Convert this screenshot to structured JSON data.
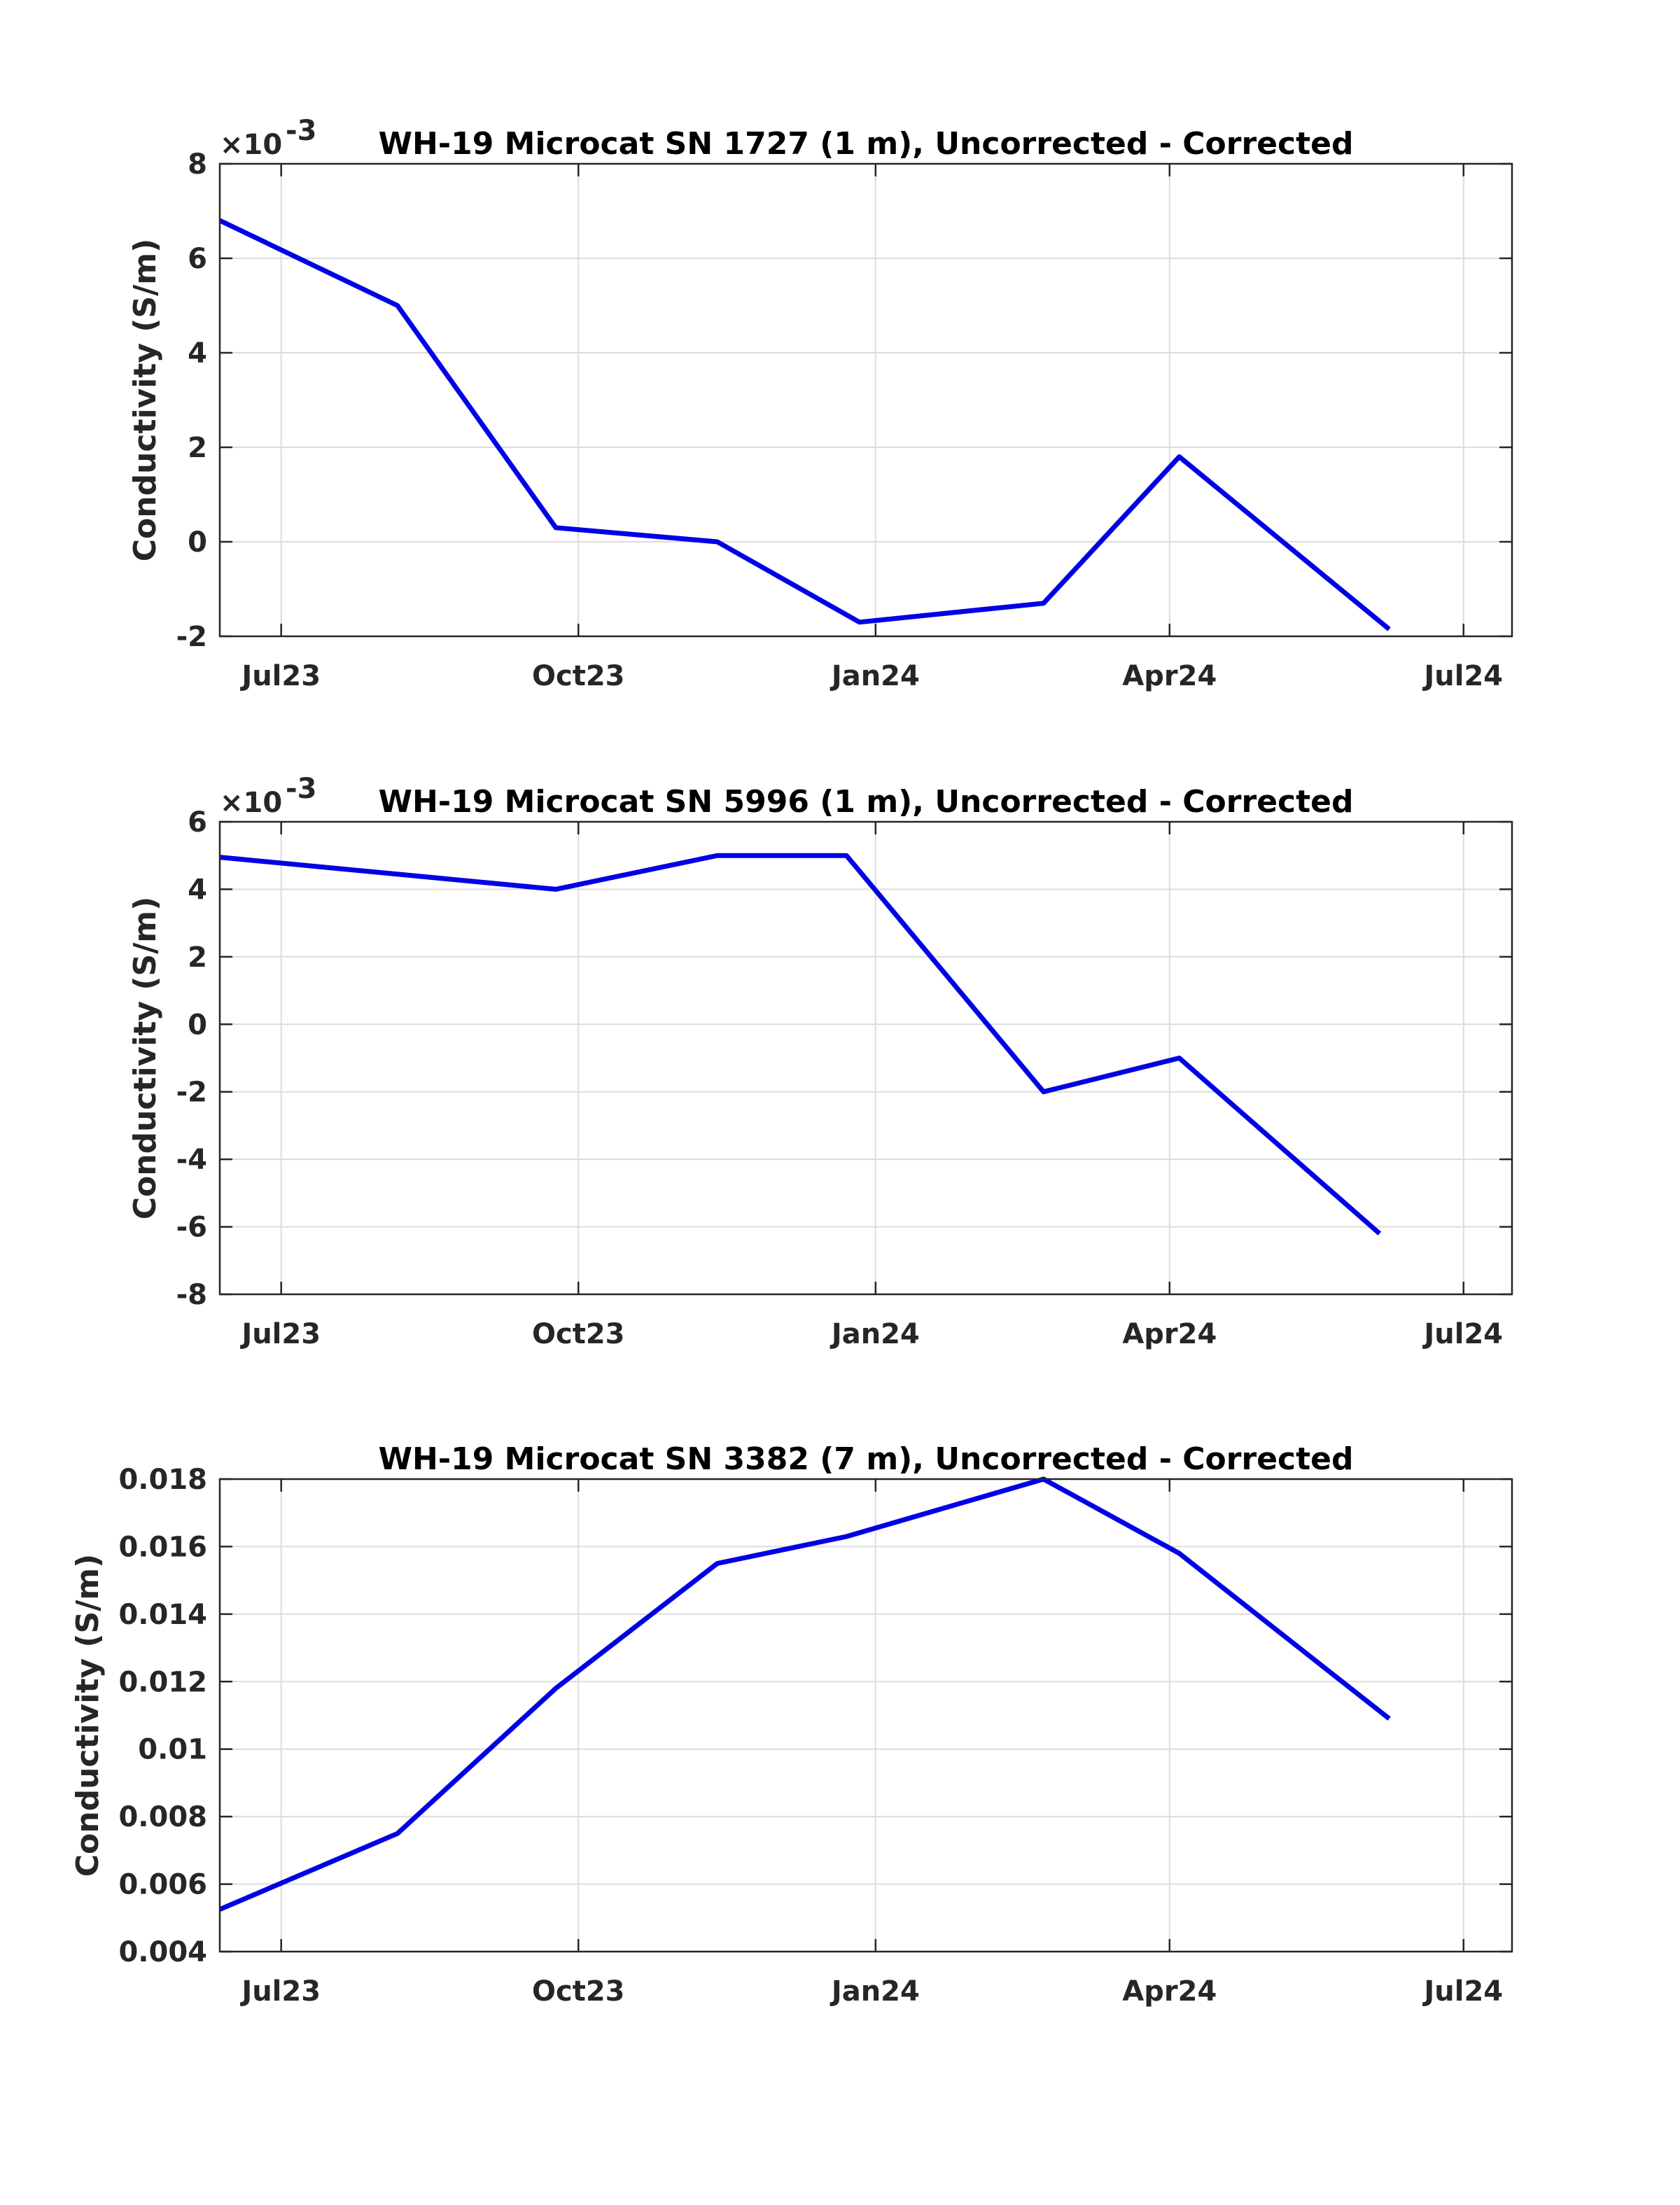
{
  "colors": {
    "line": "#0000e6",
    "grid": "#dcdcdc",
    "axis": "#262626",
    "background": "#ffffff"
  },
  "chart_data": [
    {
      "type": "line",
      "title": "WH-19 Microcat SN 1727 (1 m), Uncorrected - Corrected",
      "ylabel": "Conductivity (S/m)",
      "xlabel": "",
      "multiplier": {
        "base": "×10",
        "exponent": "-3"
      },
      "ylim": [
        -2,
        8
      ],
      "yticks": [
        -2,
        0,
        2,
        4,
        6,
        8
      ],
      "ytick_labels": [
        "-2",
        "0",
        "2",
        "4",
        "6",
        "8"
      ],
      "xlim": [
        "2023-06-12",
        "2024-07-16"
      ],
      "xticks": [
        "2023-07-01",
        "2023-10-01",
        "2024-01-01",
        "2024-04-01",
        "2024-07-01"
      ],
      "xtick_labels": [
        "Jul23",
        "Oct23",
        "Jan24",
        "Apr24",
        "Jul24"
      ],
      "grid": true,
      "series": [
        {
          "x": [
            "2023-06-12",
            "2023-08-06",
            "2023-09-24",
            "2023-11-13",
            "2023-12-27",
            "2024-02-22",
            "2024-04-04",
            "2024-06-08"
          ],
          "y": [
            6.8,
            5.0,
            0.3,
            0.0,
            -1.7,
            -1.3,
            1.8,
            -1.85
          ]
        }
      ]
    },
    {
      "type": "line",
      "title": "WH-19 Microcat SN 5996 (1 m), Uncorrected - Corrected",
      "ylabel": "Conductivity (S/m)",
      "xlabel": "",
      "multiplier": {
        "base": "×10",
        "exponent": "-3"
      },
      "ylim": [
        -8,
        6
      ],
      "yticks": [
        -8,
        -6,
        -4,
        -2,
        0,
        2,
        4,
        6
      ],
      "ytick_labels": [
        "-8",
        "-6",
        "-4",
        "-2",
        "0",
        "2",
        "4",
        "6"
      ],
      "xlim": [
        "2023-06-12",
        "2024-07-16"
      ],
      "xticks": [
        "2023-07-01",
        "2023-10-01",
        "2024-01-01",
        "2024-04-01",
        "2024-07-01"
      ],
      "xtick_labels": [
        "Jul23",
        "Oct23",
        "Jan24",
        "Apr24",
        "Jul24"
      ],
      "grid": true,
      "series": [
        {
          "x": [
            "2023-06-12",
            "2023-09-24",
            "2023-11-13",
            "2023-12-23",
            "2024-02-22",
            "2024-04-04",
            "2024-06-05"
          ],
          "y": [
            4.95,
            4.0,
            5.0,
            5.0,
            -2.0,
            -1.0,
            -6.2
          ]
        }
      ]
    },
    {
      "type": "line",
      "title": "WH-19 Microcat SN 3382 (7 m), Uncorrected - Corrected",
      "ylabel": "Conductivity (S/m)",
      "xlabel": "",
      "ylim": [
        0.004,
        0.018
      ],
      "yticks": [
        0.004,
        0.006,
        0.008,
        0.01,
        0.012,
        0.014,
        0.016,
        0.018
      ],
      "ytick_labels": [
        "0.004",
        "0.006",
        "0.008",
        "0.01",
        "0.012",
        "0.014",
        "0.016",
        "0.018"
      ],
      "xlim": [
        "2023-06-12",
        "2024-07-16"
      ],
      "xticks": [
        "2023-07-01",
        "2023-10-01",
        "2024-01-01",
        "2024-04-01",
        "2024-07-01"
      ],
      "xtick_labels": [
        "Jul23",
        "Oct23",
        "Jan24",
        "Apr24",
        "Jul24"
      ],
      "grid": true,
      "series": [
        {
          "x": [
            "2023-06-12",
            "2023-08-06",
            "2023-09-24",
            "2023-11-13",
            "2023-12-23",
            "2024-02-22",
            "2024-04-04",
            "2024-06-08"
          ],
          "y": [
            0.00525,
            0.0075,
            0.0118,
            0.0155,
            0.0163,
            0.018,
            0.0158,
            0.0109
          ]
        }
      ]
    }
  ]
}
